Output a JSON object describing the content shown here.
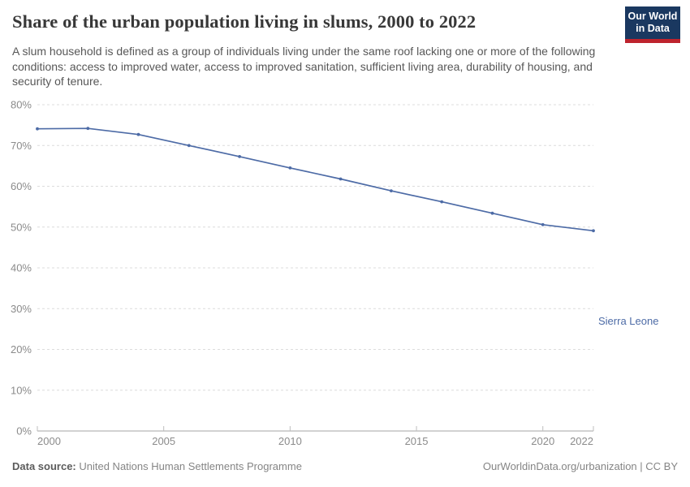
{
  "header": {
    "title": "Share of the urban population living in slums, 2000 to 2022",
    "logo": {
      "line1": "Our World",
      "line2": "in Data"
    }
  },
  "subtitle": "A slum household is defined as a group of individuals living under the same roof lacking one or more of the following conditions: access to improved water, access to improved sanitation, sufficient living area, durability of housing, and security of tenure.",
  "chart_data": {
    "type": "line",
    "title": "Share of the urban population living in slums, 2000 to 2022",
    "x": [
      2000,
      2002,
      2004,
      2006,
      2008,
      2010,
      2012,
      2014,
      2016,
      2018,
      2020,
      2022
    ],
    "series": [
      {
        "name": "Sierra Leone",
        "values": [
          74.1,
          74.2,
          72.7,
          70.0,
          67.3,
          64.5,
          61.8,
          58.9,
          56.2,
          53.4,
          50.6,
          49.1
        ],
        "color": "#4d6ba6"
      }
    ],
    "xlabel": "",
    "ylabel": "",
    "xlim": [
      2000,
      2022
    ],
    "ylim": [
      0,
      80
    ],
    "ytick_step": 10,
    "ytick_suffix": "%",
    "xticks": [
      2000,
      2005,
      2010,
      2015,
      2020,
      2022
    ],
    "grid": "dashed-horizontal",
    "legend_position": "end-of-line-label"
  },
  "footer": {
    "datasource_label": "Data source:",
    "datasource_value": " United Nations Human Settlements Programme",
    "credit": "OurWorldinData.org/urbanization | CC BY"
  },
  "colors": {
    "accent_line": "#4d6ba6",
    "grid": "#dcdcdc",
    "axis": "#a6a6a6",
    "tick": "#bdbdbd",
    "axis_text": "#8b8b8b",
    "logo_navy": "#1a3860",
    "logo_red": "#be232d"
  }
}
